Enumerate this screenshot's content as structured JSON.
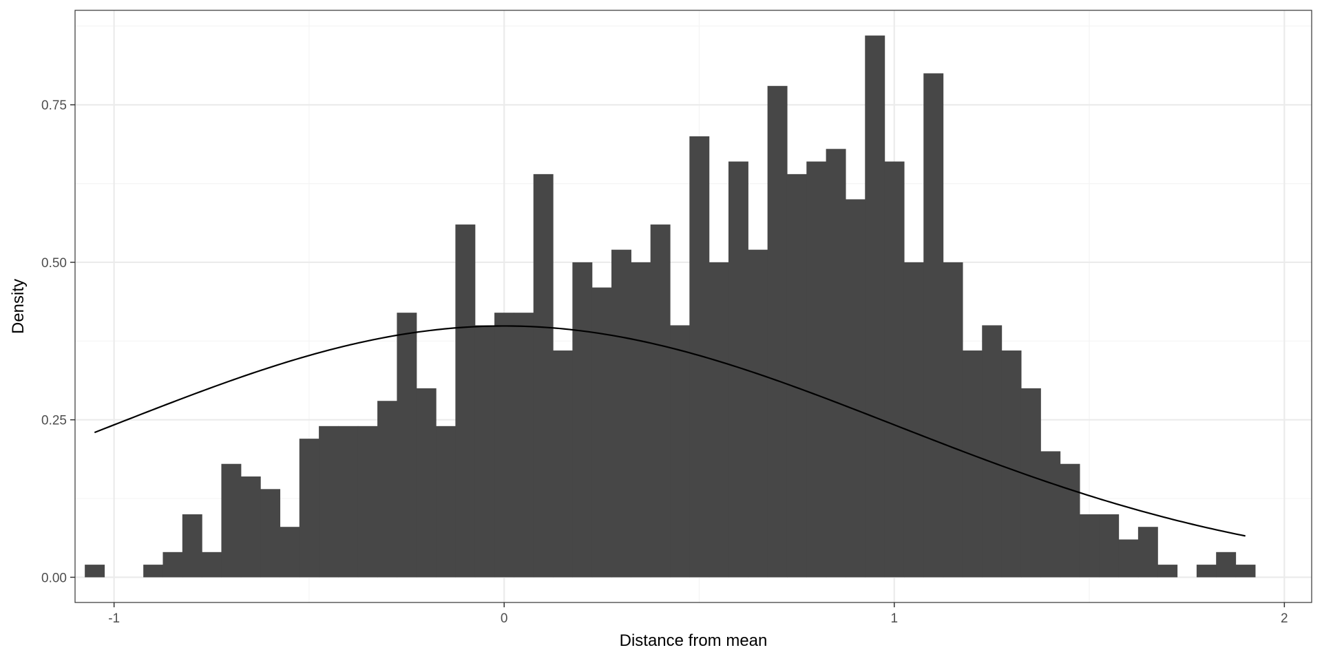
{
  "chart_data": {
    "type": "bar",
    "subtype": "histogram-with-density-curve",
    "title": "",
    "xlabel": "Distance from mean",
    "ylabel": "Density",
    "xlim": [
      -1.1,
      2.07
    ],
    "ylim": [
      -0.04,
      0.9
    ],
    "x_ticks": [
      -1,
      0,
      1,
      2
    ],
    "x_tick_labels": [
      "-1",
      "0",
      "1",
      "2"
    ],
    "y_ticks": [
      0.0,
      0.25,
      0.5,
      0.75
    ],
    "y_tick_labels": [
      "0.00",
      "0.25",
      "0.50",
      "0.75"
    ],
    "grid": true,
    "legend": "none",
    "bin_width": 0.05,
    "bins_start": -1.075,
    "histogram_values": [
      0.02,
      0,
      0,
      0.02,
      0.04,
      0.1,
      0.04,
      0.18,
      0.16,
      0.14,
      0.08,
      0.22,
      0.24,
      0.24,
      0.24,
      0.28,
      0.42,
      0.3,
      0.24,
      0.56,
      0.4,
      0.42,
      0.42,
      0.64,
      0.36,
      0.5,
      0.46,
      0.52,
      0.5,
      0.56,
      0.4,
      0.7,
      0.5,
      0.66,
      0.52,
      0.78,
      0.64,
      0.66,
      0.68,
      0.6,
      0.86,
      0.66,
      0.5,
      0.8,
      0.5,
      0.36,
      0.4,
      0.36,
      0.3,
      0.2,
      0.18,
      0.1,
      0.1,
      0.06,
      0.08,
      0.02,
      0,
      0.02,
      0.04,
      0.02
    ],
    "curve": {
      "type": "normal-density",
      "mean": 0,
      "sd": 1,
      "x_range": [
        -1.05,
        1.9
      ]
    },
    "colors": {
      "bars": "#474747",
      "curve": "#000000",
      "grid_major": "#ebebeb",
      "grid_minor": "#f4f4f4",
      "panel_border": "#333333"
    }
  }
}
